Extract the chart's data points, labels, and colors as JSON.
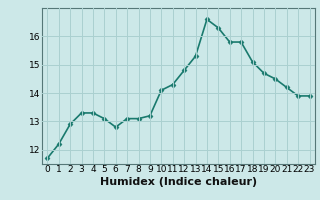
{
  "x": [
    0,
    1,
    2,
    3,
    4,
    5,
    6,
    7,
    8,
    9,
    10,
    11,
    12,
    13,
    14,
    15,
    16,
    17,
    18,
    19,
    20,
    21,
    22,
    23
  ],
  "y": [
    11.7,
    12.2,
    12.9,
    13.3,
    13.3,
    13.1,
    12.8,
    13.1,
    13.1,
    13.2,
    14.1,
    14.3,
    14.8,
    15.3,
    16.6,
    16.3,
    15.8,
    15.8,
    15.1,
    14.7,
    14.5,
    14.2,
    13.9,
    13.9
  ],
  "line_color": "#1a7a6e",
  "marker": "D",
  "marker_size": 2.5,
  "bg_color": "#cce8e8",
  "grid_color": "#aad0d0",
  "xlabel": "Humidex (Indice chaleur)",
  "xlabel_fontsize": 8,
  "ylim": [
    11.5,
    17.0
  ],
  "xlim": [
    -0.5,
    23.5
  ],
  "yticks": [
    12,
    13,
    14,
    15,
    16
  ],
  "xticks": [
    0,
    1,
    2,
    3,
    4,
    5,
    6,
    7,
    8,
    9,
    10,
    11,
    12,
    13,
    14,
    15,
    16,
    17,
    18,
    19,
    20,
    21,
    22,
    23
  ],
  "tick_fontsize": 6.5,
  "linewidth": 1.2
}
